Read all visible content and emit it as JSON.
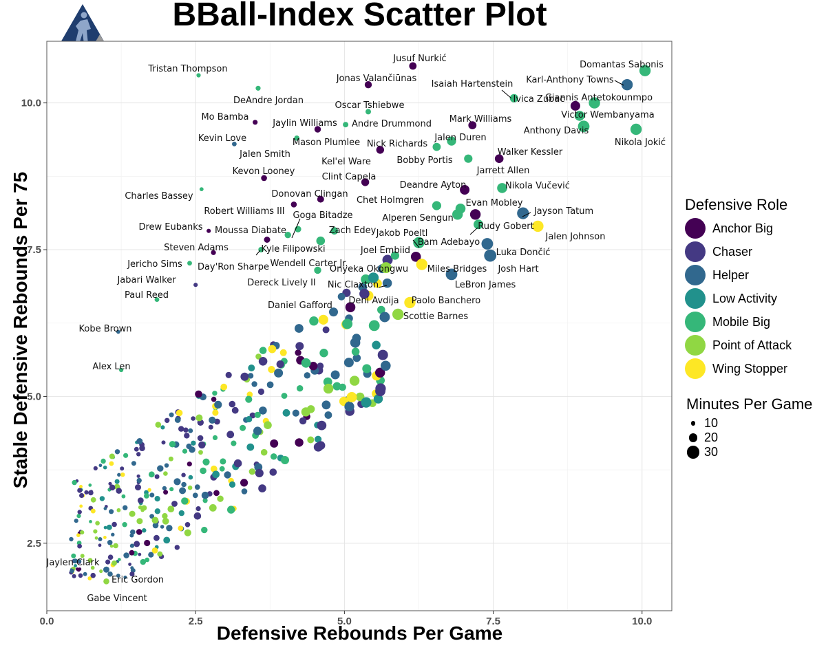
{
  "chart_data": {
    "type": "scatter",
    "title": "BBall-Index Scatter Plot",
    "xlabel": "Defensive Rebounds Per Game",
    "ylabel": "Stable Defensive Rebounds Per 75",
    "xlim": [
      0,
      10.5
    ],
    "ylim": [
      1.35,
      11.05
    ],
    "xticks": [
      "0.0",
      "2.5",
      "5.0",
      "7.5",
      "10.0"
    ],
    "yticks": [
      "2.5",
      "5.0",
      "7.5",
      "10.0"
    ],
    "grid": true,
    "legend_position": "right",
    "colors": {
      "Anchor Big": "#440154",
      "Chaser": "#443983",
      "Helper": "#31688e",
      "Low Activity": "#21918c",
      "Mobile Big": "#35b779",
      "Point of Attack": "#90d743",
      "Wing Stopper": "#fde725"
    },
    "legend": {
      "color_title": "Defensive Role",
      "roles": [
        "Anchor Big",
        "Chaser",
        "Helper",
        "Low Activity",
        "Mobile Big",
        "Point of Attack",
        "Wing Stopper"
      ],
      "size_title": "Minutes Per Game",
      "sizes": [
        10,
        20,
        30
      ]
    },
    "labeled_points": [
      {
        "name": "Tristan Thompson",
        "x": 2.55,
        "y": 10.47,
        "role": "Mobile Big",
        "min": 12
      },
      {
        "name": "Jusuf Nurkić",
        "x": 6.15,
        "y": 10.63,
        "role": "Anchor Big",
        "min": 22
      },
      {
        "name": "Domantas Sabonis",
        "x": 10.05,
        "y": 10.55,
        "role": "Mobile Big",
        "min": 34
      },
      {
        "name": "Jonas Valančiūnas",
        "x": 5.4,
        "y": 10.31,
        "role": "Anchor Big",
        "min": 21
      },
      {
        "name": "Karl-Anthony Towns",
        "x": 9.75,
        "y": 10.31,
        "role": "Helper",
        "min": 34
      },
      {
        "name": "DeAndre Jordan",
        "x": 3.55,
        "y": 10.25,
        "role": "Mobile Big",
        "min": 14
      },
      {
        "name": "Isaiah Hartenstein",
        "x": 7.85,
        "y": 10.08,
        "role": "Mobile Big",
        "min": 25
      },
      {
        "name": "Ivica Zubac",
        "x": 8.88,
        "y": 9.95,
        "role": "Anchor Big",
        "min": 29
      },
      {
        "name": "Giannis Antetokounmpo",
        "x": 9.2,
        "y": 10.0,
        "role": "Mobile Big",
        "min": 34
      },
      {
        "name": "Oscar Tshiebwe",
        "x": 5.4,
        "y": 9.85,
        "role": "Mobile Big",
        "min": 16
      },
      {
        "name": "Victor Wembanyama",
        "x": 8.95,
        "y": 9.78,
        "role": "Mobile Big",
        "min": 30
      },
      {
        "name": "Mo Bamba",
        "x": 3.5,
        "y": 9.67,
        "role": "Anchor Big",
        "min": 14
      },
      {
        "name": "Jaylin Williams",
        "x": 4.55,
        "y": 9.55,
        "role": "Anchor Big",
        "min": 19
      },
      {
        "name": "Andre Drummond",
        "x": 5.02,
        "y": 9.63,
        "role": "Mobile Big",
        "min": 16
      },
      {
        "name": "Mark Williams",
        "x": 7.15,
        "y": 9.62,
        "role": "Anchor Big",
        "min": 24
      },
      {
        "name": "Anthony Davis",
        "x": 9.02,
        "y": 9.6,
        "role": "Mobile Big",
        "min": 35
      },
      {
        "name": "Nikola Jokić",
        "x": 9.9,
        "y": 9.55,
        "role": "Mobile Big",
        "min": 34
      },
      {
        "name": "Kevin Love",
        "x": 3.15,
        "y": 9.3,
        "role": "Helper",
        "min": 13
      },
      {
        "name": "Mason Plumlee",
        "x": 4.2,
        "y": 9.4,
        "role": "Mobile Big",
        "min": 15
      },
      {
        "name": "Jalen Duren",
        "x": 6.8,
        "y": 9.35,
        "role": "Mobile Big",
        "min": 27
      },
      {
        "name": "Nick Richards",
        "x": 5.6,
        "y": 9.2,
        "role": "Anchor Big",
        "min": 23
      },
      {
        "name": "Bobby Portis",
        "x": 6.55,
        "y": 9.25,
        "role": "Mobile Big",
        "min": 24
      },
      {
        "name": "Walker Kessler",
        "x": 7.6,
        "y": 9.05,
        "role": "Anchor Big",
        "min": 26
      },
      {
        "name": "Kel'el Ware",
        "x": 7.08,
        "y": 9.05,
        "role": "Mobile Big",
        "min": 25
      },
      {
        "name": "Kevon Looney",
        "x": 3.65,
        "y": 8.72,
        "role": "Anchor Big",
        "min": 17
      },
      {
        "name": "Clint Capela",
        "x": 5.35,
        "y": 8.65,
        "role": "Anchor Big",
        "min": 23
      },
      {
        "name": "Nikola Vučević",
        "x": 7.65,
        "y": 8.55,
        "role": "Mobile Big",
        "min": 30
      },
      {
        "name": "Deandre Ayton",
        "x": 7.02,
        "y": 8.52,
        "role": "Anchor Big",
        "min": 29
      },
      {
        "name": "Charles Bassey",
        "x": 2.6,
        "y": 8.53,
        "role": "Mobile Big",
        "min": 11
      },
      {
        "name": "Donovan Clingan",
        "x": 4.6,
        "y": 8.36,
        "role": "Anchor Big",
        "min": 20
      },
      {
        "name": "Evan Mobley",
        "x": 6.95,
        "y": 8.2,
        "role": "Mobile Big",
        "min": 30
      },
      {
        "name": "Robert Williams III",
        "x": 4.15,
        "y": 8.27,
        "role": "Anchor Big",
        "min": 17
      },
      {
        "name": "Chet Holmgren",
        "x": 6.55,
        "y": 8.25,
        "role": "Mobile Big",
        "min": 27
      },
      {
        "name": "Jayson Tatum",
        "x": 8.0,
        "y": 8.12,
        "role": "Helper",
        "min": 36
      },
      {
        "name": "Alperen Sengun",
        "x": 6.9,
        "y": 8.1,
        "role": "Mobile Big",
        "min": 32
      },
      {
        "name": "Goga Bitadze",
        "x": 4.22,
        "y": 7.85,
        "role": "Mobile Big",
        "min": 19
      },
      {
        "name": "Rudy Gobert",
        "x": 7.2,
        "y": 8.1,
        "role": "Anchor Big",
        "min": 32
      },
      {
        "name": "Zach Edey",
        "x": 4.83,
        "y": 7.82,
        "role": "Mobile Big",
        "min": 22
      },
      {
        "name": "Drew Eubanks",
        "x": 2.72,
        "y": 7.82,
        "role": "Anchor Big",
        "min": 12
      },
      {
        "name": "Moussa Diabate",
        "x": 4.05,
        "y": 7.75,
        "role": "Mobile Big",
        "min": 19
      },
      {
        "name": "Jalen Johnson",
        "x": 8.25,
        "y": 7.9,
        "role": "Wing Stopper",
        "min": 34
      },
      {
        "name": "Jakob Poeltl",
        "x": 7.25,
        "y": 7.93,
        "role": "Mobile Big",
        "min": 29
      },
      {
        "name": "Bam Adebayo",
        "x": 6.25,
        "y": 7.62,
        "role": "Mobile Big",
        "min": 34
      },
      {
        "name": "Steven Adams",
        "x": 2.8,
        "y": 7.45,
        "role": "Anchor Big",
        "min": 14
      },
      {
        "name": "Kyle Filipowski",
        "x": 3.7,
        "y": 7.67,
        "role": "Anchor Big",
        "min": 18
      },
      {
        "name": "Luka Dončić",
        "x": 7.4,
        "y": 7.6,
        "role": "Helper",
        "min": 35
      },
      {
        "name": "Joel Embiid",
        "x": 6.2,
        "y": 7.38,
        "role": "Anchor Big",
        "min": 30
      },
      {
        "name": "Josh Hart",
        "x": 7.45,
        "y": 7.4,
        "role": "Helper",
        "min": 37
      },
      {
        "name": "Wendell Carter Jr.",
        "x": 4.6,
        "y": 7.65,
        "role": "Mobile Big",
        "min": 26
      },
      {
        "name": "Jericho Sims",
        "x": 2.4,
        "y": 7.27,
        "role": "Mobile Big",
        "min": 13
      },
      {
        "name": "Day'Ron Sharpe",
        "x": 3.6,
        "y": 7.5,
        "role": "Mobile Big",
        "min": 16
      },
      {
        "name": "Onyeka Okongwu",
        "x": 5.85,
        "y": 7.4,
        "role": "Mobile Big",
        "min": 25
      },
      {
        "name": "Miles Bridges",
        "x": 6.3,
        "y": 7.25,
        "role": "Wing Stopper",
        "min": 34
      },
      {
        "name": "Jabari Walker",
        "x": 2.5,
        "y": 6.9,
        "role": "Chaser",
        "min": 12
      },
      {
        "name": "LeBron James",
        "x": 6.8,
        "y": 7.08,
        "role": "Helper",
        "min": 35
      },
      {
        "name": "Dereck Lively II",
        "x": 4.55,
        "y": 7.15,
        "role": "Mobile Big",
        "min": 21
      },
      {
        "name": "Nic Claxton",
        "x": 5.72,
        "y": 6.93,
        "role": "Helper",
        "min": 28
      },
      {
        "name": "Paul Reed",
        "x": 1.85,
        "y": 6.65,
        "role": "Mobile Big",
        "min": 13
      },
      {
        "name": "Deni Avdija",
        "x": 5.1,
        "y": 6.52,
        "role": "Anchor Big",
        "min": 30
      },
      {
        "name": "Paolo Banchero",
        "x": 6.1,
        "y": 6.6,
        "role": "Wing Stopper",
        "min": 34
      },
      {
        "name": "Daniel Gafford",
        "x": 4.95,
        "y": 6.7,
        "role": "Helper",
        "min": 22
      },
      {
        "name": "Scottie Barnes",
        "x": 5.9,
        "y": 6.4,
        "role": "Point of Attack",
        "min": 34
      },
      {
        "name": "Kobe Brown",
        "x": 1.2,
        "y": 6.1,
        "role": "Helper",
        "min": 11
      },
      {
        "name": "Alex Len",
        "x": 1.25,
        "y": 5.45,
        "role": "Mobile Big",
        "min": 12
      },
      {
        "name": "Jaylen Clark",
        "x": 0.55,
        "y": 2.45,
        "role": "Chaser",
        "min": 13
      },
      {
        "name": "Eric Gordon",
        "x": 1.0,
        "y": 2.05,
        "role": "Helper",
        "min": 18
      },
      {
        "name": "Gabe Vincent",
        "x": 1.0,
        "y": 1.85,
        "role": "Point of Attack",
        "min": 17
      }
    ]
  }
}
